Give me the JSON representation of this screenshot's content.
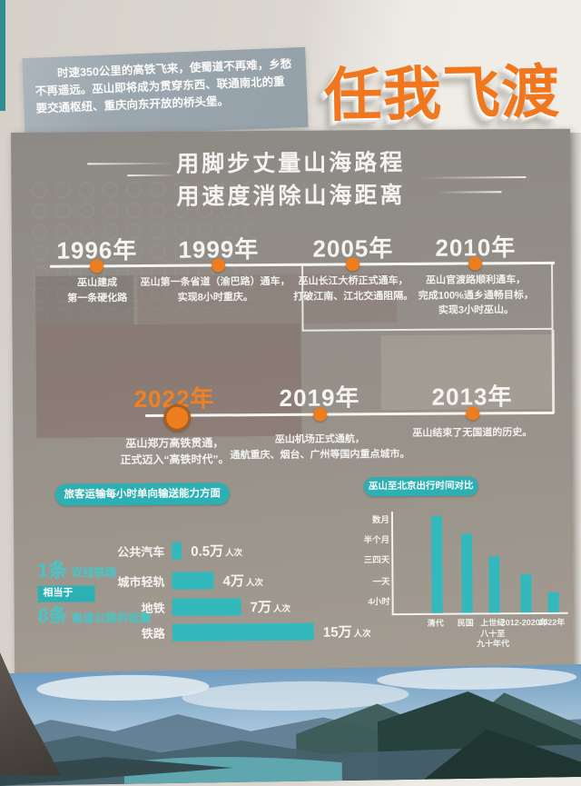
{
  "wall": {
    "intro_text": "时速350公里的高铁飞来，使蜀道不再难，乡愁不再遥远。巫山即将成为贯穿东西、联通南北的重要交通枢纽、重庆向东开放的桥头堡。",
    "main_title": "任我飞渡"
  },
  "panel": {
    "title_line1": "用脚步丈量山海路程",
    "title_line2": "用速度消除山海距离"
  },
  "timeline": {
    "top": [
      {
        "year": "1996年",
        "desc": "巫山建成\n第一条硬化路"
      },
      {
        "year": "1999年",
        "desc": "巫山第一条省道（渝巴路）通车，\n实现8小时重庆。"
      },
      {
        "year": "2005年",
        "desc": "巫山长江大桥正式通车，\n打破江南、江北交通阻隔。"
      },
      {
        "year": "2010年",
        "desc": "巫山官渡路顺利通车，\n完成100%通乡通畅目标，\n实现3小时巫山。"
      }
    ],
    "bottom": [
      {
        "year": "2022年",
        "desc": "巫山郑万高铁贯通，\n正式迈入“高铁时代”。",
        "highlight": true
      },
      {
        "year": "2019年",
        "desc": "巫山机场正式通航，\n通航重庆、烟台、广州等国内重点城市。"
      },
      {
        "year": "2013年",
        "desc": "巫山结束了无国道的历史。"
      }
    ]
  },
  "capacity": {
    "badge": "旅客运输每小时单向输送能力方面",
    "note": {
      "big1": "1条",
      "small1": "双线铁路",
      "mid": "相当于",
      "big2": "8条",
      "small2": "高速公路的运量"
    }
  },
  "time_compare": {
    "badge": "巫山至北京出行时间对比"
  },
  "chart_data": [
    {
      "type": "bar",
      "orientation": "horizontal",
      "title": "旅客运输每小时单向输送能力方面",
      "categories": [
        "公共汽车",
        "城市轻轨",
        "地铁",
        "铁路"
      ],
      "values": [
        0.5,
        4,
        7,
        15
      ],
      "value_labels": [
        "0.5万",
        "4万",
        "7万",
        "15万"
      ],
      "unit": "人次",
      "xlim": [
        0,
        15
      ],
      "grid": false,
      "bar_color": "#33b9bc"
    },
    {
      "type": "bar",
      "orientation": "vertical",
      "title": "巫山至北京出行时间对比",
      "categories": [
        "清代",
        "民国",
        "上世纪八十至九十年代",
        "2012-2020年",
        "2022年"
      ],
      "x_labels": [
        "清代",
        "民国",
        "上世纪\n八十至\n九十年代",
        "2012-2020年",
        "2022年"
      ],
      "values": [
        "数月",
        "半个月",
        "三四天",
        "一天",
        "4小时"
      ],
      "values_rel": [
        0.97,
        0.79,
        0.56,
        0.38,
        0.2
      ],
      "y_ticks": [
        "数月",
        "半个月",
        "三四天",
        "一天",
        "4小时"
      ],
      "grid": false,
      "bar_color": "#33b9bc"
    }
  ],
  "colors": {
    "accent_orange": "#ef7c1e",
    "teal": "#2cb0b4",
    "panel_gray": "#948f88",
    "wall_teal_edge": "#2f8e91"
  }
}
